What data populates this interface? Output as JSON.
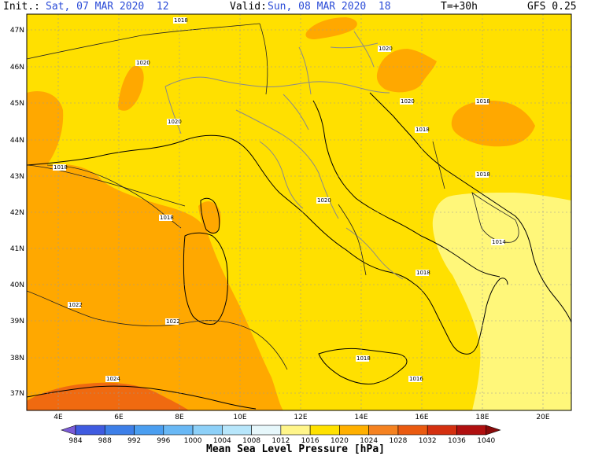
{
  "header": {
    "init_label": "Init.:",
    "init_value": "Sat, 07 MAR 2020  12",
    "valid_label": "Valid:",
    "valid_value": "Sun, 08 MAR 2020  18",
    "lead": "T=+30h",
    "model": "GFS 0.25"
  },
  "axes": {
    "lat_labels": [
      "47N",
      "46N",
      "45N",
      "44N",
      "43N",
      "42N",
      "41N",
      "40N",
      "39N",
      "38N",
      "37N"
    ],
    "lon_labels": [
      "4E",
      "6E",
      "8E",
      "10E",
      "12E",
      "14E",
      "16E",
      "18E",
      "20E"
    ]
  },
  "legend": {
    "title": "Mean Sea Level Pressure [hPa]",
    "values": [
      "984",
      "988",
      "992",
      "996",
      "1000",
      "1004",
      "1008",
      "1012",
      "1016",
      "1020",
      "1024",
      "1028",
      "1032",
      "1036",
      "1040"
    ],
    "colors": [
      "#7b5cd6",
      "#3f5be0",
      "#3d7fe8",
      "#4a9ef0",
      "#69b8f5",
      "#8dd0f8",
      "#b7e6fb",
      "#e6f7fb",
      "#fff58a",
      "#ffe100",
      "#ffb000",
      "#f58220",
      "#ea5a10",
      "#d43010",
      "#b01010",
      "#8a0a0a"
    ]
  },
  "contour_labels": [
    "1018",
    "1020",
    "1020",
    "1020",
    "1020",
    "1018",
    "1018",
    "1018",
    "1020",
    "1018",
    "1014",
    "1018",
    "1022",
    "1022",
    "1024",
    "1018",
    "1016",
    "1018"
  ],
  "colors": {
    "zone_1016": "#fff77a",
    "zone_1020": "#ffe000",
    "zone_1024": "#ffa800",
    "zone_1028": "#f06a10",
    "coast": "#000000",
    "borders": "#8a8a8a",
    "grid": "#9a9a9a"
  }
}
